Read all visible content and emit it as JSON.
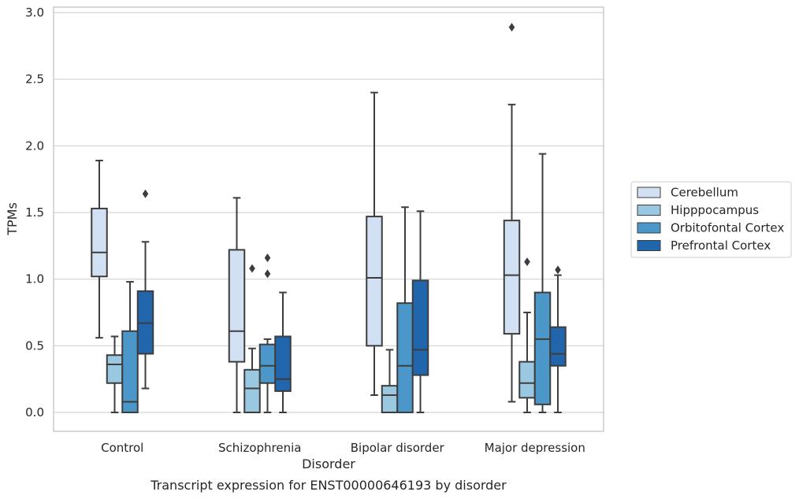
{
  "chart_data": {
    "type": "box",
    "xlabel": "Disorder",
    "ylabel": "TPMs",
    "caption": "Transcript expression for ENST00000646193 by disorder",
    "ylim": [
      -0.14,
      3.04
    ],
    "yticks": [
      0.0,
      0.5,
      1.0,
      1.5,
      2.0,
      2.5,
      3.0
    ],
    "ytick_labels": [
      "0.0",
      "0.5",
      "1.0",
      "1.5",
      "2.0",
      "2.5",
      "3.0"
    ],
    "grid": "horizontal",
    "legend_position": "right",
    "categories": [
      "Control",
      "Schizophrenia",
      "Bipolar disorder",
      "Major depression"
    ],
    "series": [
      {
        "name": "Cerebellum",
        "color": "#d1e0f2",
        "boxes": [
          {
            "whisker_low": 0.56,
            "q1": 1.02,
            "median": 1.2,
            "q3": 1.53,
            "whisker_high": 1.89,
            "outliers": []
          },
          {
            "whisker_low": 0.0,
            "q1": 0.38,
            "median": 0.61,
            "q3": 1.22,
            "whisker_high": 1.61,
            "outliers": []
          },
          {
            "whisker_low": 0.13,
            "q1": 0.5,
            "median": 1.01,
            "q3": 1.47,
            "whisker_high": 2.4,
            "outliers": []
          },
          {
            "whisker_low": 0.08,
            "q1": 0.59,
            "median": 1.03,
            "q3": 1.44,
            "whisker_high": 2.31,
            "outliers": [
              2.89
            ]
          }
        ]
      },
      {
        "name": "Hipppocampus",
        "color": "#9ac8e0",
        "boxes": [
          {
            "whisker_low": 0.0,
            "q1": 0.22,
            "median": 0.36,
            "q3": 0.43,
            "whisker_high": 0.57,
            "outliers": []
          },
          {
            "whisker_low": 0.0,
            "q1": 0.0,
            "median": 0.18,
            "q3": 0.32,
            "whisker_high": 0.48,
            "outliers": [
              1.08
            ]
          },
          {
            "whisker_low": 0.0,
            "q1": 0.0,
            "median": 0.13,
            "q3": 0.2,
            "whisker_high": 0.47,
            "outliers": []
          },
          {
            "whisker_low": 0.0,
            "q1": 0.11,
            "median": 0.22,
            "q3": 0.38,
            "whisker_high": 0.75,
            "outliers": [
              1.13
            ]
          }
        ]
      },
      {
        "name": "Orbitofontal Cortex",
        "color": "#4b97c9",
        "boxes": [
          {
            "whisker_low": 0.0,
            "q1": 0.0,
            "median": 0.08,
            "q3": 0.61,
            "whisker_high": 0.98,
            "outliers": []
          },
          {
            "whisker_low": 0.0,
            "q1": 0.22,
            "median": 0.35,
            "q3": 0.51,
            "whisker_high": 0.55,
            "outliers": [
              1.04,
              1.16
            ]
          },
          {
            "whisker_low": 0.0,
            "q1": 0.0,
            "median": 0.35,
            "q3": 0.82,
            "whisker_high": 1.54,
            "outliers": []
          },
          {
            "whisker_low": 0.0,
            "q1": 0.06,
            "median": 0.55,
            "q3": 0.9,
            "whisker_high": 1.94,
            "outliers": []
          }
        ]
      },
      {
        "name": "Prefrontal Cortex",
        "color": "#2166ac",
        "boxes": [
          {
            "whisker_low": 0.18,
            "q1": 0.44,
            "median": 0.67,
            "q3": 0.91,
            "whisker_high": 1.28,
            "outliers": [
              1.64
            ]
          },
          {
            "whisker_low": 0.0,
            "q1": 0.16,
            "median": 0.25,
            "q3": 0.57,
            "whisker_high": 0.9,
            "outliers": []
          },
          {
            "whisker_low": 0.0,
            "q1": 0.28,
            "median": 0.47,
            "q3": 0.99,
            "whisker_high": 1.51,
            "outliers": []
          },
          {
            "whisker_low": 0.0,
            "q1": 0.35,
            "median": 0.44,
            "q3": 0.64,
            "whisker_high": 1.03,
            "outliers": [
              1.07
            ]
          }
        ]
      }
    ]
  }
}
